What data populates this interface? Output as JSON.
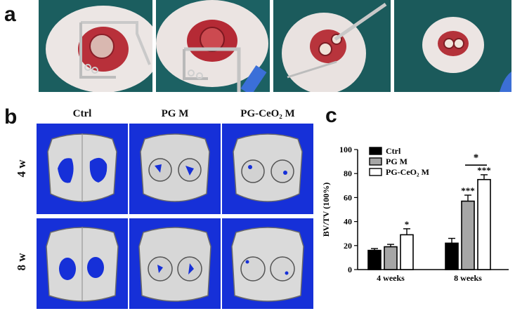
{
  "panels": {
    "a": {
      "label": "a",
      "photos": [
        "surgery-step-1",
        "surgery-step-2",
        "surgery-step-3",
        "surgery-step-4"
      ]
    },
    "b": {
      "label": "b",
      "columns": [
        "Ctrl",
        "PG M",
        "PG-CeO₂ M"
      ],
      "rows": [
        "4 w",
        "8 w"
      ]
    },
    "c": {
      "label": "c"
    }
  },
  "chart_data": {
    "type": "bar",
    "categories": [
      "4 weeks",
      "8 weeks"
    ],
    "ylabel": "BV/TV (100%)",
    "ylim": [
      0,
      100
    ],
    "yticks": [
      0,
      20,
      40,
      60,
      80,
      100
    ],
    "legend_position": "top-left",
    "series": [
      {
        "name": "Ctrl",
        "color": "#000000",
        "values": [
          16,
          22
        ],
        "errors": [
          1.5,
          4
        ],
        "stars": [
          "",
          ""
        ]
      },
      {
        "name": "PG M",
        "color": "#a6a6a6",
        "values": [
          19,
          57
        ],
        "errors": [
          2,
          5
        ],
        "stars": [
          "",
          "***"
        ]
      },
      {
        "name": "PG-CeO₂ M",
        "color": "#ffffff",
        "values": [
          29,
          75
        ],
        "errors": [
          5,
          4
        ],
        "stars": [
          "*",
          "***"
        ]
      }
    ],
    "significance": {
      "label": "*",
      "category": "8 weeks",
      "from_series": 1,
      "to_series": 2
    }
  }
}
